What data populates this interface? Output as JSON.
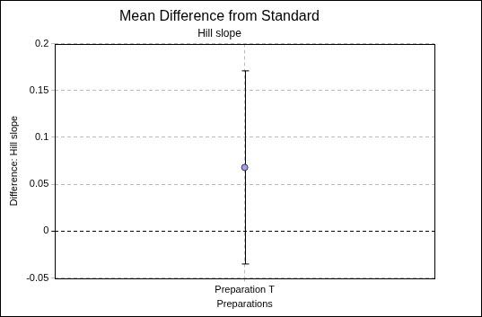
{
  "chart_data": {
    "type": "scatter",
    "title": "Mean Difference from Standard",
    "subtitle": "Hill slope",
    "x_label": "Preparations",
    "y_label": "Difference: Hill slope",
    "categories": [
      "Preparation T"
    ],
    "values": [
      0.068
    ],
    "error_low": [
      -0.035
    ],
    "error_high": [
      0.171
    ],
    "color": "#9fa3e0",
    "marker": "circle",
    "ylim": [
      -0.05,
      0.2
    ],
    "yticks": [
      -0.05,
      0,
      0.05,
      0.1,
      0.15,
      0.2
    ],
    "grid": true
  }
}
